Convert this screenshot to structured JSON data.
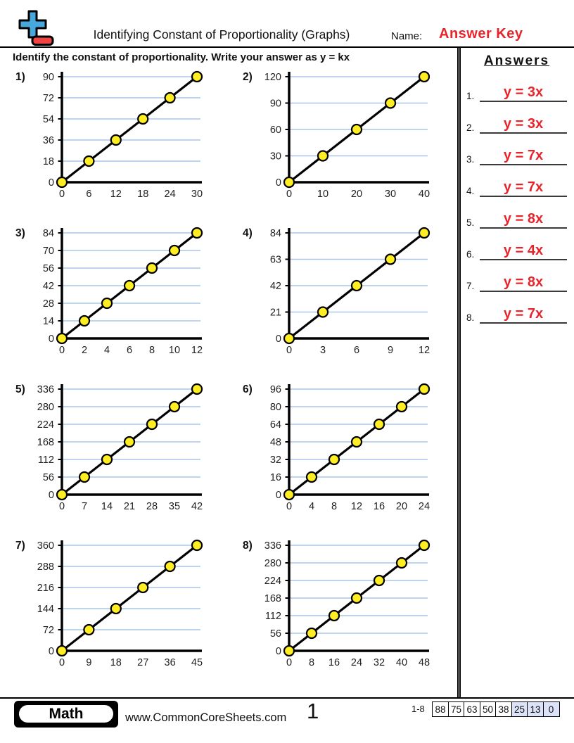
{
  "header": {
    "title": "Identifying Constant of Proportionality (Graphs)",
    "name_label": "Name:",
    "name_value": "Answer Key",
    "instruction": "Identify the constant of proportionality. Write your answer as y = kx",
    "logo_icon": "plus-minus-icon"
  },
  "answers_panel": {
    "title": "Answers",
    "items": [
      {
        "num": "1.",
        "value": "y = 3x"
      },
      {
        "num": "2.",
        "value": "y = 3x"
      },
      {
        "num": "3.",
        "value": "y = 7x"
      },
      {
        "num": "4.",
        "value": "y = 7x"
      },
      {
        "num": "5.",
        "value": "y = 8x"
      },
      {
        "num": "6.",
        "value": "y = 4x"
      },
      {
        "num": "7.",
        "value": "y = 8x"
      },
      {
        "num": "8.",
        "value": "y = 7x"
      }
    ]
  },
  "chart_data": [
    {
      "label": "1)",
      "type": "line",
      "k": 3,
      "x": [
        0,
        6,
        12,
        18,
        24,
        30
      ],
      "y": [
        0,
        18,
        36,
        54,
        72,
        90
      ],
      "xlim": [
        0,
        30
      ],
      "ylim": [
        0,
        90
      ],
      "grid": "horizontal"
    },
    {
      "label": "2)",
      "type": "line",
      "k": 3,
      "x": [
        0,
        10,
        20,
        30,
        40
      ],
      "y": [
        0,
        30,
        60,
        90,
        120
      ],
      "xlim": [
        0,
        40
      ],
      "ylim": [
        0,
        120
      ],
      "grid": "horizontal"
    },
    {
      "label": "3)",
      "type": "line",
      "k": 7,
      "x": [
        0,
        2,
        4,
        6,
        8,
        10,
        12
      ],
      "y": [
        0,
        14,
        28,
        42,
        56,
        70,
        84
      ],
      "xlim": [
        0,
        12
      ],
      "ylim": [
        0,
        84
      ],
      "grid": "horizontal"
    },
    {
      "label": "4)",
      "type": "line",
      "k": 7,
      "x": [
        0,
        3,
        6,
        9,
        12
      ],
      "y": [
        0,
        21,
        42,
        63,
        84
      ],
      "xlim": [
        0,
        12
      ],
      "ylim": [
        0,
        84
      ],
      "grid": "horizontal"
    },
    {
      "label": "5)",
      "type": "line",
      "k": 8,
      "x": [
        0,
        7,
        14,
        21,
        28,
        35,
        42
      ],
      "y": [
        0,
        56,
        112,
        168,
        224,
        280,
        336
      ],
      "xlim": [
        0,
        42
      ],
      "ylim": [
        0,
        336
      ],
      "grid": "horizontal"
    },
    {
      "label": "6)",
      "type": "line",
      "k": 4,
      "x": [
        0,
        4,
        8,
        12,
        16,
        20,
        24
      ],
      "y": [
        0,
        16,
        32,
        48,
        64,
        80,
        96
      ],
      "xlim": [
        0,
        24
      ],
      "ylim": [
        0,
        96
      ],
      "grid": "horizontal"
    },
    {
      "label": "7)",
      "type": "line",
      "k": 8,
      "x": [
        0,
        9,
        18,
        27,
        36,
        45
      ],
      "y": [
        0,
        72,
        144,
        216,
        288,
        360
      ],
      "xlim": [
        0,
        45
      ],
      "ylim": [
        0,
        360
      ],
      "grid": "horizontal"
    },
    {
      "label": "8)",
      "type": "line",
      "k": 7,
      "x": [
        0,
        8,
        16,
        24,
        32,
        40,
        48
      ],
      "y": [
        0,
        56,
        112,
        168,
        224,
        280,
        336
      ],
      "xlim": [
        0,
        48
      ],
      "ylim": [
        0,
        336
      ],
      "grid": "horizontal"
    }
  ],
  "footer": {
    "subject_badge": "Math",
    "website": "www.CommonCoreSheets.com",
    "page_number": "1",
    "range_label": "1-8",
    "score_cells": [
      {
        "value": "88",
        "highlight": false
      },
      {
        "value": "75",
        "highlight": false
      },
      {
        "value": "63",
        "highlight": false
      },
      {
        "value": "50",
        "highlight": false
      },
      {
        "value": "38",
        "highlight": false
      },
      {
        "value": "25",
        "highlight": true
      },
      {
        "value": "13",
        "highlight": true
      },
      {
        "value": "0",
        "highlight": true
      }
    ]
  },
  "colors": {
    "accent_red": "#e8232a",
    "gridline_blue": "#a9c5ea",
    "point_yellow": "#ffee22",
    "score_highlight": "#dce3f8",
    "logo_blue": "#47a8dc",
    "logo_red": "#f04343"
  }
}
